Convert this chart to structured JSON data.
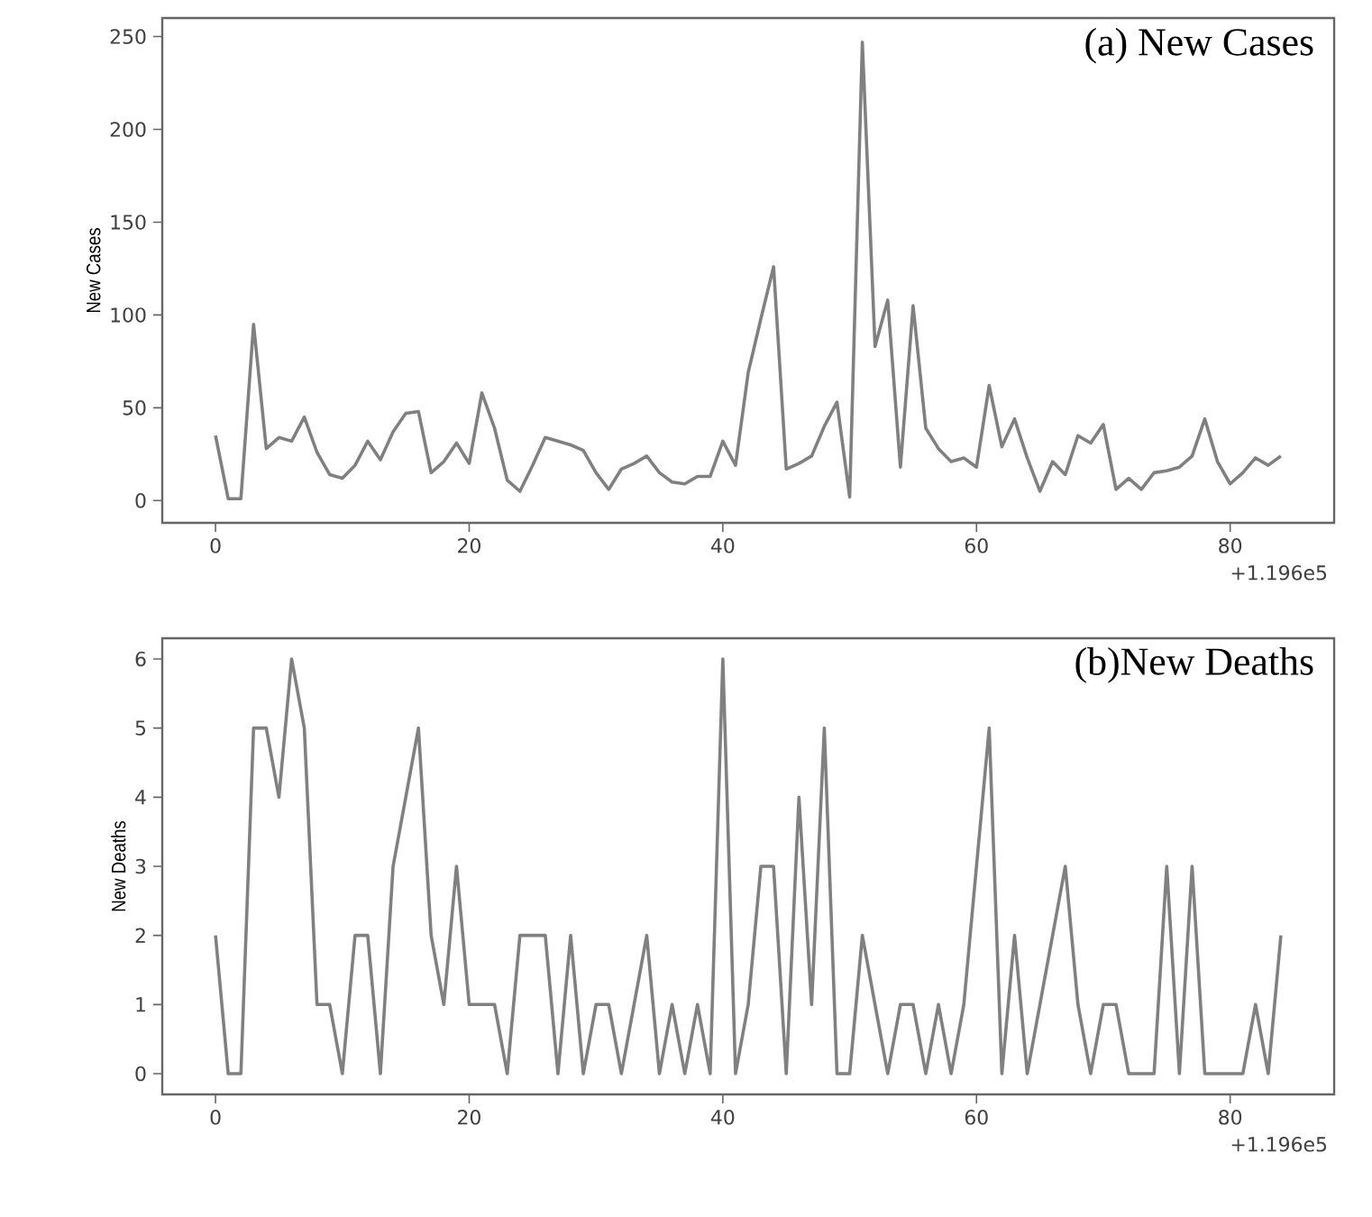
{
  "chart_data": [
    {
      "type": "line",
      "title": "(a)  New Cases",
      "ylabel": "New Cases",
      "color": "#808080",
      "x": [
        0,
        1,
        2,
        3,
        4,
        5,
        6,
        7,
        8,
        9,
        10,
        11,
        12,
        13,
        14,
        15,
        16,
        17,
        18,
        19,
        20,
        21,
        22,
        23,
        24,
        25,
        26,
        27,
        28,
        29,
        30,
        31,
        32,
        33,
        34,
        35,
        36,
        37,
        38,
        39,
        40,
        41,
        42,
        43,
        44,
        45,
        46,
        47,
        48,
        49,
        50,
        51,
        52,
        53,
        54,
        55,
        56,
        57,
        58,
        59,
        60,
        61,
        62,
        63,
        64,
        65,
        66,
        67,
        68,
        69,
        70,
        71,
        72,
        73,
        74,
        75,
        76,
        77,
        78,
        79,
        80,
        81,
        82,
        83,
        84
      ],
      "values": [
        35,
        1,
        1,
        95,
        28,
        34,
        32,
        45,
        26,
        14,
        12,
        19,
        32,
        22,
        37,
        47,
        48,
        15,
        21,
        31,
        20,
        58,
        39,
        11,
        5,
        19,
        34,
        32,
        30,
        27,
        15,
        6,
        17,
        20,
        24,
        15,
        10,
        9,
        13,
        13,
        32,
        19,
        69,
        98,
        126,
        17,
        20,
        24,
        40,
        53,
        2,
        247,
        83,
        108,
        18,
        105,
        39,
        28,
        21,
        23,
        18,
        62,
        29,
        44,
        23,
        5,
        21,
        14,
        35,
        31,
        41,
        6,
        12,
        6,
        15,
        16,
        18,
        24,
        44,
        21,
        9,
        15,
        23,
        19,
        24
      ],
      "xlim": [
        -4.2,
        88.2
      ],
      "ylim": [
        -12,
        260
      ],
      "xticks": [
        0,
        20,
        40,
        60,
        80
      ],
      "yticks": [
        0,
        50,
        100,
        150,
        200,
        250
      ],
      "annotations": [
        "+1.196e5"
      ]
    },
    {
      "type": "line",
      "title": "(b)New Deaths",
      "ylabel": "New Deaths",
      "color": "#808080",
      "x": [
        0,
        1,
        2,
        3,
        4,
        5,
        6,
        7,
        8,
        9,
        10,
        11,
        12,
        13,
        14,
        15,
        16,
        17,
        18,
        19,
        20,
        21,
        22,
        23,
        24,
        25,
        26,
        27,
        28,
        29,
        30,
        31,
        32,
        33,
        34,
        35,
        36,
        37,
        38,
        39,
        40,
        41,
        42,
        43,
        44,
        45,
        46,
        47,
        48,
        49,
        50,
        51,
        52,
        53,
        54,
        55,
        56,
        57,
        58,
        59,
        60,
        61,
        62,
        63,
        64,
        65,
        66,
        67,
        68,
        69,
        70,
        71,
        72,
        73,
        74,
        75,
        76,
        77,
        78,
        79,
        80,
        81,
        82,
        83,
        84
      ],
      "values": [
        2,
        0,
        0,
        5,
        5,
        4,
        6,
        5,
        1,
        1,
        0,
        2,
        2,
        0,
        3,
        4,
        5,
        2,
        1,
        3,
        1,
        1,
        1,
        0,
        2,
        2,
        2,
        0,
        2,
        0,
        1,
        1,
        0,
        1,
        2,
        0,
        1,
        0,
        1,
        0,
        6,
        0,
        1,
        3,
        3,
        0,
        4,
        1,
        5,
        0,
        0,
        2,
        1,
        0,
        1,
        1,
        0,
        1,
        0,
        1,
        3,
        5,
        0,
        2,
        0,
        1,
        2,
        3,
        1,
        0,
        1,
        1,
        0,
        0,
        0,
        3,
        0,
        3,
        0,
        0,
        0,
        0,
        1,
        0,
        2
      ],
      "xlim": [
        -4.2,
        88.2
      ],
      "ylim": [
        -0.3,
        6.3
      ],
      "xticks": [
        0,
        20,
        40,
        60,
        80
      ],
      "yticks": [
        0,
        1,
        2,
        3,
        4,
        5,
        6
      ],
      "annotations": [
        "+1.196e5"
      ]
    }
  ]
}
